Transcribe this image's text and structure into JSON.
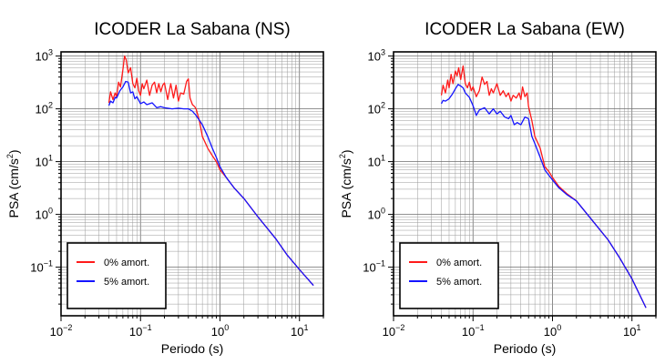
{
  "chart_data": [
    {
      "type": "line",
      "title": "ICODER La Sabana (NS)",
      "xlabel": "Periodo (s)",
      "ylabel_main": "PSA (cm/s",
      "ylabel_sup": "2",
      "ylabel_close": ")",
      "x_scale": "log",
      "y_scale": "log",
      "xlim": [
        0.01,
        20
      ],
      "ylim": [
        0.012,
        1200
      ],
      "x_ticks": [
        {
          "value": 0.01,
          "base": "10",
          "exp": "−2"
        },
        {
          "value": 0.1,
          "base": "10",
          "exp": "−1"
        },
        {
          "value": 1,
          "base": "10",
          "exp": "0"
        },
        {
          "value": 10,
          "base": "10",
          "exp": "1"
        }
      ],
      "y_ticks": [
        {
          "value": 0.1,
          "base": "10",
          "exp": "−1"
        },
        {
          "value": 1,
          "base": "10",
          "exp": "0"
        },
        {
          "value": 10,
          "base": "10",
          "exp": "1"
        },
        {
          "value": 100,
          "base": "10",
          "exp": "2"
        },
        {
          "value": 1000,
          "base": "10",
          "exp": "3"
        }
      ],
      "grid": true,
      "legend_position": "bottom-left",
      "series": [
        {
          "name": "0% amort.",
          "color": "#ff1a1a",
          "x": [
            0.04,
            0.042,
            0.045,
            0.048,
            0.05,
            0.053,
            0.056,
            0.06,
            0.063,
            0.066,
            0.07,
            0.075,
            0.08,
            0.085,
            0.09,
            0.095,
            0.1,
            0.105,
            0.11,
            0.12,
            0.13,
            0.14,
            0.15,
            0.16,
            0.17,
            0.18,
            0.19,
            0.2,
            0.22,
            0.24,
            0.26,
            0.28,
            0.3,
            0.32,
            0.35,
            0.38,
            0.4,
            0.42,
            0.45,
            0.48,
            0.5,
            0.55,
            0.6,
            0.7,
            0.8,
            0.9,
            1.0,
            1.2,
            1.5,
            2,
            3,
            5,
            7,
            10,
            15
          ],
          "y": [
            130,
            210,
            150,
            200,
            170,
            320,
            260,
            550,
            1000,
            850,
            480,
            600,
            300,
            250,
            380,
            220,
            180,
            300,
            240,
            350,
            180,
            280,
            320,
            200,
            300,
            210,
            280,
            310,
            150,
            300,
            160,
            280,
            140,
            200,
            190,
            330,
            370,
            160,
            120,
            110,
            100,
            60,
            30,
            18,
            13,
            10,
            7,
            5,
            3.2,
            2,
            0.9,
            0.35,
            0.17,
            0.09,
            0.045
          ]
        },
        {
          "name": "5% amort.",
          "color": "#1414ff",
          "x": [
            0.04,
            0.042,
            0.045,
            0.048,
            0.05,
            0.055,
            0.06,
            0.065,
            0.07,
            0.075,
            0.08,
            0.085,
            0.09,
            0.1,
            0.11,
            0.12,
            0.14,
            0.16,
            0.18,
            0.2,
            0.25,
            0.3,
            0.35,
            0.4,
            0.45,
            0.5,
            0.6,
            0.7,
            0.8,
            0.9,
            1.0,
            1.2,
            1.5,
            2,
            3,
            5,
            7,
            10,
            15
          ],
          "y": [
            115,
            140,
            130,
            165,
            160,
            220,
            260,
            330,
            320,
            200,
            210,
            155,
            170,
            125,
            135,
            120,
            130,
            105,
            110,
            105,
            100,
            103,
            100,
            100,
            90,
            75,
            50,
            30,
            18,
            12,
            8,
            5,
            3.2,
            2,
            0.9,
            0.35,
            0.17,
            0.09,
            0.045
          ]
        }
      ]
    },
    {
      "type": "line",
      "title": "ICODER La Sabana (EW)",
      "xlabel": "Periodo (s)",
      "ylabel_main": "PSA (cm/s",
      "ylabel_sup": "2",
      "ylabel_close": ")",
      "x_scale": "log",
      "y_scale": "log",
      "xlim": [
        0.01,
        20
      ],
      "ylim": [
        0.012,
        1200
      ],
      "x_ticks": [
        {
          "value": 0.01,
          "base": "10",
          "exp": "−2"
        },
        {
          "value": 0.1,
          "base": "10",
          "exp": "−1"
        },
        {
          "value": 1,
          "base": "10",
          "exp": "0"
        },
        {
          "value": 10,
          "base": "10",
          "exp": "1"
        }
      ],
      "y_ticks": [
        {
          "value": 0.1,
          "base": "10",
          "exp": "−1"
        },
        {
          "value": 1,
          "base": "10",
          "exp": "0"
        },
        {
          "value": 10,
          "base": "10",
          "exp": "1"
        },
        {
          "value": 100,
          "base": "10",
          "exp": "2"
        },
        {
          "value": 1000,
          "base": "10",
          "exp": "3"
        }
      ],
      "grid": true,
      "legend_position": "bottom-left",
      "series": [
        {
          "name": "0% amort.",
          "color": "#ff1a1a",
          "x": [
            0.04,
            0.042,
            0.045,
            0.048,
            0.05,
            0.053,
            0.056,
            0.06,
            0.063,
            0.066,
            0.07,
            0.075,
            0.08,
            0.085,
            0.09,
            0.095,
            0.1,
            0.11,
            0.12,
            0.13,
            0.14,
            0.15,
            0.16,
            0.17,
            0.18,
            0.2,
            0.22,
            0.24,
            0.26,
            0.28,
            0.3,
            0.32,
            0.35,
            0.38,
            0.4,
            0.42,
            0.45,
            0.48,
            0.5,
            0.55,
            0.6,
            0.7,
            0.8,
            0.9,
            1.0,
            1.2,
            1.5,
            2,
            3,
            5,
            7,
            10,
            15
          ],
          "y": [
            180,
            280,
            200,
            350,
            250,
            450,
            300,
            520,
            420,
            600,
            360,
            650,
            300,
            250,
            320,
            220,
            260,
            170,
            220,
            400,
            290,
            330,
            180,
            240,
            200,
            300,
            180,
            220,
            170,
            200,
            140,
            180,
            160,
            200,
            150,
            260,
            170,
            200,
            110,
            60,
            30,
            18,
            8,
            6.5,
            5,
            3.4,
            2.5,
            1.8,
            0.85,
            0.33,
            0.15,
            0.06,
            0.017
          ]
        },
        {
          "name": "5% amort.",
          "color": "#1414ff",
          "x": [
            0.04,
            0.042,
            0.045,
            0.05,
            0.055,
            0.06,
            0.065,
            0.07,
            0.075,
            0.08,
            0.09,
            0.1,
            0.11,
            0.12,
            0.14,
            0.16,
            0.18,
            0.2,
            0.22,
            0.25,
            0.28,
            0.3,
            0.33,
            0.36,
            0.4,
            0.45,
            0.5,
            0.55,
            0.6,
            0.7,
            0.8,
            0.9,
            1.0,
            1.2,
            1.5,
            2,
            3,
            5,
            7,
            10,
            15
          ],
          "y": [
            125,
            145,
            140,
            155,
            190,
            240,
            290,
            270,
            250,
            200,
            165,
            115,
            75,
            95,
            105,
            80,
            100,
            80,
            90,
            70,
            65,
            75,
            50,
            55,
            50,
            70,
            65,
            30,
            22,
            12,
            7,
            5.5,
            4.5,
            3.2,
            2.4,
            1.8,
            0.85,
            0.33,
            0.15,
            0.06,
            0.017
          ]
        }
      ]
    }
  ]
}
